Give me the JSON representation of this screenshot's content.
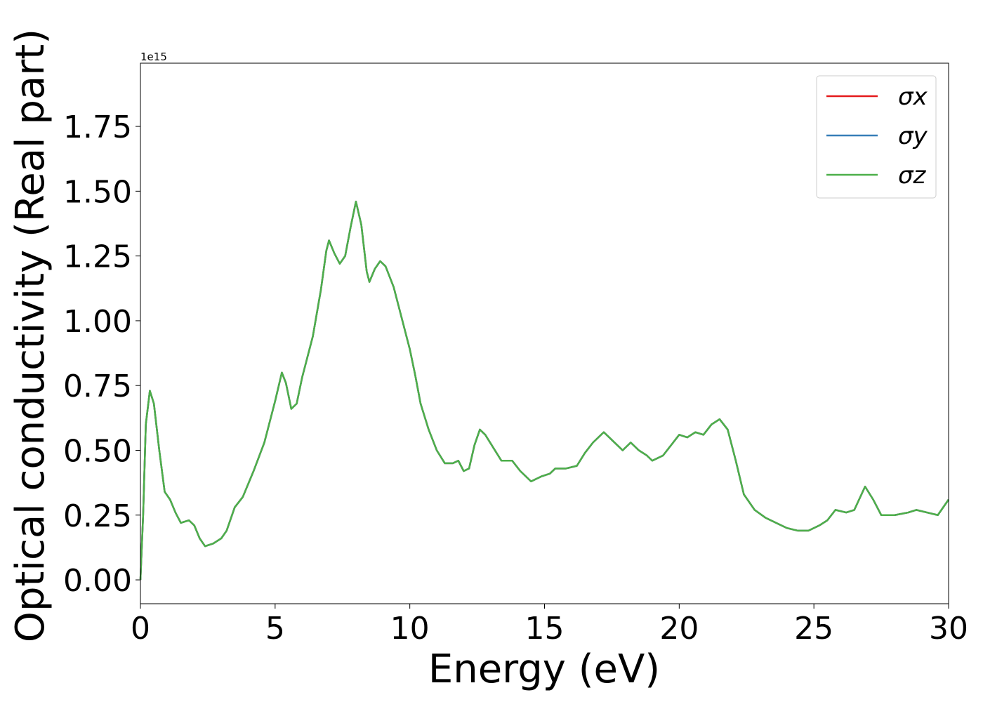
{
  "chart_data": {
    "type": "line",
    "x_label": "Energy (eV)",
    "y_label": "Optical conductivity (Real part)",
    "y_offset_text": "1e15",
    "x": [
      0,
      0.1,
      0.2,
      0.35,
      0.5,
      0.7,
      0.9,
      1.1,
      1.3,
      1.5,
      1.8,
      2.0,
      2.2,
      2.4,
      2.7,
      3.0,
      3.2,
      3.5,
      3.8,
      4.2,
      4.6,
      5.0,
      5.25,
      5.4,
      5.6,
      5.8,
      6.0,
      6.4,
      6.7,
      6.9,
      7.0,
      7.2,
      7.4,
      7.6,
      7.8,
      8.0,
      8.2,
      8.4,
      8.5,
      8.7,
      8.9,
      9.1,
      9.4,
      9.7,
      10.0,
      10.2,
      10.4,
      10.7,
      11.0,
      11.3,
      11.6,
      11.8,
      12.0,
      12.2,
      12.4,
      12.6,
      12.8,
      13.1,
      13.4,
      13.8,
      14.1,
      14.5,
      14.9,
      15.2,
      15.4,
      15.8,
      16.2,
      16.5,
      16.8,
      17.2,
      17.5,
      17.9,
      18.2,
      18.5,
      18.8,
      19.0,
      19.4,
      19.7,
      20.0,
      20.3,
      20.6,
      20.9,
      21.2,
      21.5,
      21.8,
      22.1,
      22.4,
      22.8,
      23.2,
      23.6,
      24.0,
      24.4,
      24.8,
      25.2,
      25.5,
      25.8,
      26.2,
      26.5,
      26.9,
      27.2,
      27.5,
      28.0,
      28.5,
      28.8,
      29.2,
      29.6,
      30.0
    ],
    "series": [
      {
        "name": "σx",
        "color": "#e41a1c",
        "values": [
          0.0,
          0.25,
          0.6,
          0.73,
          0.68,
          0.5,
          0.34,
          0.31,
          0.26,
          0.22,
          0.23,
          0.21,
          0.16,
          0.13,
          0.14,
          0.16,
          0.19,
          0.28,
          0.32,
          0.42,
          0.53,
          0.69,
          0.8,
          0.76,
          0.66,
          0.68,
          0.78,
          0.94,
          1.12,
          1.27,
          1.31,
          1.26,
          1.22,
          1.25,
          1.36,
          1.46,
          1.37,
          1.19,
          1.15,
          1.2,
          1.23,
          1.21,
          1.13,
          1.01,
          0.89,
          0.79,
          0.68,
          0.58,
          0.5,
          0.45,
          0.45,
          0.46,
          0.42,
          0.43,
          0.52,
          0.58,
          0.56,
          0.51,
          0.46,
          0.46,
          0.42,
          0.38,
          0.4,
          0.41,
          0.43,
          0.43,
          0.44,
          0.49,
          0.53,
          0.57,
          0.54,
          0.5,
          0.53,
          0.5,
          0.48,
          0.46,
          0.48,
          0.52,
          0.56,
          0.55,
          0.57,
          0.56,
          0.6,
          0.62,
          0.58,
          0.46,
          0.33,
          0.27,
          0.24,
          0.22,
          0.2,
          0.19,
          0.19,
          0.21,
          0.23,
          0.27,
          0.26,
          0.27,
          0.36,
          0.31,
          0.25,
          0.25,
          0.26,
          0.27,
          0.26,
          0.25,
          0.31
        ]
      },
      {
        "name": "σy",
        "color": "#377eb8",
        "values": [
          0.0,
          0.25,
          0.6,
          0.73,
          0.68,
          0.5,
          0.34,
          0.31,
          0.26,
          0.22,
          0.23,
          0.21,
          0.16,
          0.13,
          0.14,
          0.16,
          0.19,
          0.28,
          0.32,
          0.42,
          0.53,
          0.69,
          0.8,
          0.76,
          0.66,
          0.68,
          0.78,
          0.94,
          1.12,
          1.27,
          1.31,
          1.26,
          1.22,
          1.25,
          1.36,
          1.46,
          1.37,
          1.19,
          1.15,
          1.2,
          1.23,
          1.21,
          1.13,
          1.01,
          0.89,
          0.79,
          0.68,
          0.58,
          0.5,
          0.45,
          0.45,
          0.46,
          0.42,
          0.43,
          0.52,
          0.58,
          0.56,
          0.51,
          0.46,
          0.46,
          0.42,
          0.38,
          0.4,
          0.41,
          0.43,
          0.43,
          0.44,
          0.49,
          0.53,
          0.57,
          0.54,
          0.5,
          0.53,
          0.5,
          0.48,
          0.46,
          0.48,
          0.52,
          0.56,
          0.55,
          0.57,
          0.56,
          0.6,
          0.62,
          0.58,
          0.46,
          0.33,
          0.27,
          0.24,
          0.22,
          0.2,
          0.19,
          0.19,
          0.21,
          0.23,
          0.27,
          0.26,
          0.27,
          0.36,
          0.31,
          0.25,
          0.25,
          0.26,
          0.27,
          0.26,
          0.25,
          0.31
        ]
      },
      {
        "name": "σz",
        "color": "#4daf4a",
        "values": [
          0.0,
          0.25,
          0.6,
          0.73,
          0.68,
          0.5,
          0.34,
          0.31,
          0.26,
          0.22,
          0.23,
          0.21,
          0.16,
          0.13,
          0.14,
          0.16,
          0.19,
          0.28,
          0.32,
          0.42,
          0.53,
          0.69,
          0.8,
          0.76,
          0.66,
          0.68,
          0.78,
          0.94,
          1.12,
          1.27,
          1.31,
          1.26,
          1.22,
          1.25,
          1.36,
          1.46,
          1.37,
          1.19,
          1.15,
          1.2,
          1.23,
          1.21,
          1.13,
          1.01,
          0.89,
          0.79,
          0.68,
          0.58,
          0.5,
          0.45,
          0.45,
          0.46,
          0.42,
          0.43,
          0.52,
          0.58,
          0.56,
          0.51,
          0.46,
          0.46,
          0.42,
          0.38,
          0.4,
          0.41,
          0.43,
          0.43,
          0.44,
          0.49,
          0.53,
          0.57,
          0.54,
          0.5,
          0.53,
          0.5,
          0.48,
          0.46,
          0.48,
          0.52,
          0.56,
          0.55,
          0.57,
          0.56,
          0.6,
          0.62,
          0.58,
          0.46,
          0.33,
          0.27,
          0.24,
          0.22,
          0.2,
          0.19,
          0.19,
          0.21,
          0.23,
          0.27,
          0.26,
          0.27,
          0.36,
          0.31,
          0.25,
          0.25,
          0.26,
          0.27,
          0.26,
          0.25,
          0.31
        ]
      }
    ],
    "xlim": [
      0,
      30
    ],
    "xticks": [
      0,
      5,
      10,
      15,
      20,
      25,
      30
    ],
    "ylim": [
      -0.092,
      1.994
    ],
    "yticks": [
      {
        "value": 0,
        "label": "0.00"
      },
      {
        "value": 0.25,
        "label": "0.25"
      },
      {
        "value": 0.5,
        "label": "0.50"
      },
      {
        "value": 0.75,
        "label": "0.75"
      },
      {
        "value": 1,
        "label": "1.00"
      },
      {
        "value": 1.25,
        "label": "1.25"
      },
      {
        "value": 1.5,
        "label": "1.50"
      },
      {
        "value": 1.75,
        "label": "1.75"
      }
    ],
    "grid": false,
    "legend": "upper right"
  }
}
